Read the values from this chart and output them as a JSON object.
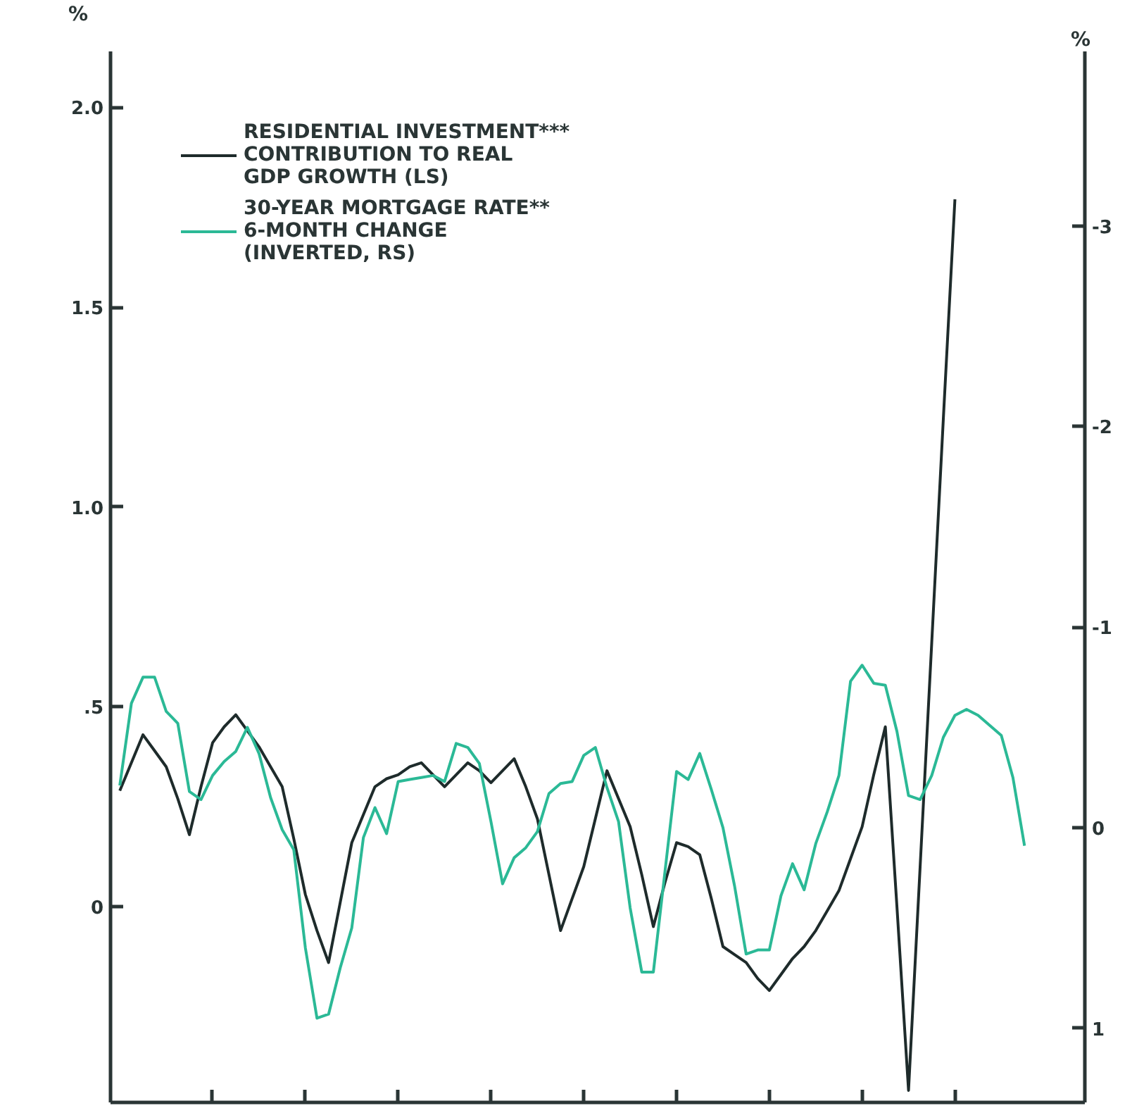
{
  "chart_data": {
    "type": "line",
    "ylabel": "%",
    "y2label": "%",
    "categories": [
      null,
      null,
      null,
      null,
      null,
      null,
      null,
      null,
      null,
      null,
      null,
      null,
      null,
      null,
      null,
      null,
      null,
      null,
      null,
      null,
      null,
      null,
      null,
      null,
      null,
      null,
      null,
      null,
      null,
      null,
      null,
      null,
      null,
      null,
      null,
      null,
      null,
      null,
      null,
      null,
      null,
      null,
      null,
      null,
      null,
      null,
      null,
      null,
      null,
      null,
      null,
      null,
      null,
      null,
      null,
      null,
      null,
      null,
      null,
      null,
      null,
      null,
      null,
      null,
      null,
      null,
      null,
      null,
      null,
      null,
      null,
      null,
      null,
      null,
      null,
      null,
      null,
      null,
      null
    ],
    "ylim": [
      -0.49,
      2.14
    ],
    "yticks": [
      0,
      {
        "value": 0.5,
        "label": ".5"
      },
      {
        "value": 1.0,
        "label": "1.0"
      },
      1.5,
      {
        "value": 2.0,
        "label": "2.0"
      }
    ],
    "y2lim": [
      1.37,
      -3.87
    ],
    "y2ticks": [
      1,
      0,
      -1,
      -2,
      -3
    ],
    "grid": false,
    "legend": "top left",
    "marker": "none",
    "line_style": "solid",
    "series": [
      {
        "name": "RESIDENTIAL INVESTMENT***\nCONTRIBUTION TO REAL\nGDP GROWTH (LS)",
        "color": "#1e2b2b",
        "values": [
          0.29,
          0.36,
          0.43,
          0.39,
          0.35,
          0.27,
          0.18,
          0.3,
          0.41,
          0.45,
          0.48,
          0.44,
          0.4,
          0.35,
          0.3,
          0.17,
          0.03,
          -0.06,
          -0.14,
          0.01,
          0.16,
          0.23,
          0.3,
          0.32,
          0.33,
          0.35,
          0.36,
          0.33,
          0.3,
          0.33,
          0.36,
          0.34,
          0.31,
          0.34,
          0.37,
          0.3,
          0.22,
          0.08,
          -0.06,
          0.02,
          0.1,
          0.22,
          0.34,
          0.27,
          0.2,
          0.08,
          -0.05,
          0.06,
          0.16,
          0.15,
          0.13,
          0.02,
          -0.1,
          -0.12,
          -0.14,
          -0.18,
          -0.21,
          -0.17,
          -0.13,
          -0.1,
          -0.06,
          -0.01,
          0.04,
          0.12,
          0.2,
          0.33,
          0.45,
          0.0,
          -0.46,
          0.1,
          0.66,
          1.22,
          1.77,
          null,
          null,
          null,
          null,
          null,
          null
        ]
      },
      {
        "name": "30-YEAR MORTGAGE RATE**\n6-MONTH CHANGE\n(INVERTED, RS)",
        "color": "#2bb996",
        "axis": "y2",
        "values": [
          -0.21,
          -0.62,
          -0.75,
          -0.75,
          -0.58,
          -0.52,
          -0.18,
          -0.14,
          -0.26,
          -0.33,
          -0.38,
          -0.5,
          -0.37,
          -0.15,
          0.01,
          0.11,
          0.6,
          0.95,
          0.93,
          0.7,
          0.5,
          0.05,
          -0.1,
          0.03,
          -0.23,
          -0.24,
          -0.25,
          -0.26,
          -0.23,
          -0.42,
          -0.4,
          -0.32,
          -0.03,
          0.28,
          0.15,
          0.1,
          0.02,
          -0.17,
          -0.22,
          -0.23,
          -0.36,
          -0.4,
          -0.2,
          -0.03,
          0.4,
          0.72,
          0.72,
          0.22,
          -0.28,
          -0.24,
          -0.37,
          -0.19,
          0.0,
          0.29,
          0.63,
          0.61,
          0.61,
          0.34,
          0.18,
          0.31,
          0.08,
          -0.08,
          -0.26,
          -0.73,
          -0.81,
          -0.72,
          -0.71,
          -0.48,
          -0.16,
          -0.14,
          -0.26,
          -0.45,
          -0.56,
          -0.59,
          -0.56,
          -0.51,
          -0.46,
          -0.25,
          0.09
        ]
      }
    ]
  }
}
